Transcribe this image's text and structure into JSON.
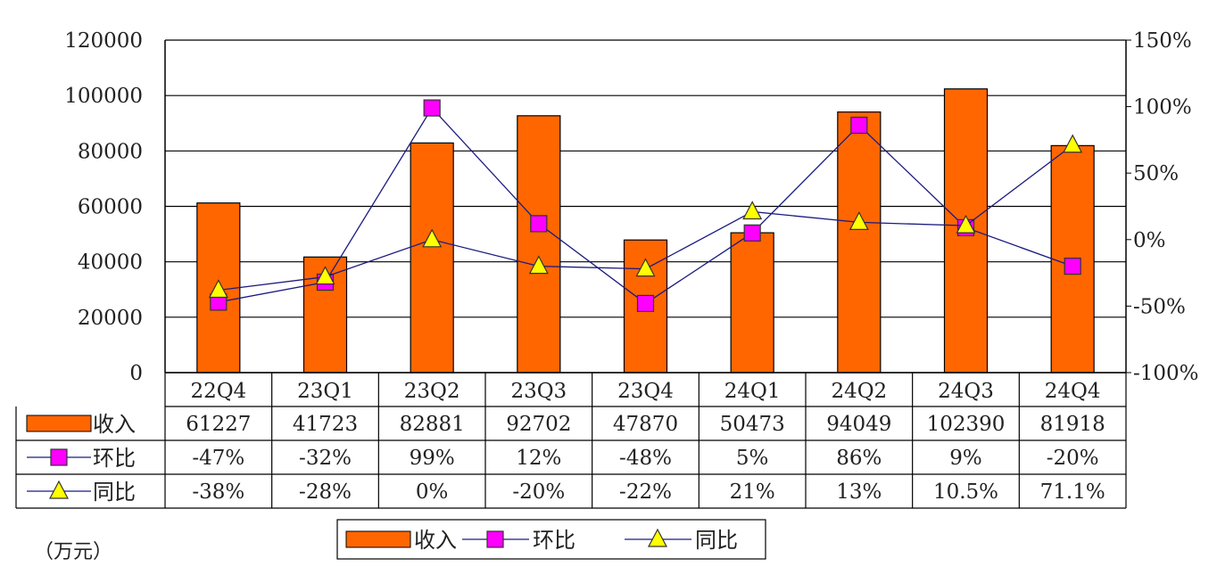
{
  "chart_data": {
    "type": "bar",
    "categories": [
      "22Q4",
      "23Q1",
      "23Q2",
      "23Q3",
      "23Q4",
      "24Q1",
      "24Q2",
      "24Q3",
      "24Q4"
    ],
    "series": [
      {
        "name": "收入",
        "type": "bar",
        "axis": "left",
        "color": "#ff6600",
        "values": [
          61227,
          41723,
          82881,
          92702,
          47870,
          50473,
          94049,
          102390,
          81918
        ]
      },
      {
        "name": "环比",
        "type": "line",
        "axis": "right",
        "marker": "square",
        "color": "#ff00ff",
        "line_color": "#1a1a80",
        "values": [
          -47,
          -32,
          99,
          12,
          -48,
          5,
          86,
          9,
          -20
        ]
      },
      {
        "name": "同比",
        "type": "line",
        "axis": "right",
        "marker": "triangle",
        "color": "#ffff00",
        "line_color": "#1a1a80",
        "values": [
          -38,
          -28,
          0,
          -20,
          -22,
          21,
          13,
          10.5,
          71.1
        ]
      }
    ],
    "table_rows": [
      {
        "label": "收入",
        "cells": [
          "61227",
          "41723",
          "82881",
          "92702",
          "47870",
          "50473",
          "94049",
          "102390",
          "81918"
        ]
      },
      {
        "label": "环比",
        "cells": [
          "-47%",
          "-32%",
          "99%",
          "12%",
          "-48%",
          "5%",
          "86%",
          "9%",
          "-20%"
        ]
      },
      {
        "label": "同比",
        "cells": [
          "-38%",
          "-28%",
          "0%",
          "-20%",
          "-22%",
          "21%",
          "13%",
          "10.5%",
          "71.1%"
        ]
      }
    ],
    "y_left": {
      "range": [
        0,
        120000
      ],
      "ticks": [
        "0",
        "20000",
        "40000",
        "60000",
        "80000",
        "100000",
        "120000"
      ]
    },
    "y_right": {
      "range": [
        -100,
        150
      ],
      "ticks": [
        "-100%",
        "-50%",
        "0%",
        "50%",
        "100%",
        "150%"
      ]
    },
    "unit_label": "（万元）",
    "legend": {
      "position": "bottom",
      "entries": [
        "收入",
        "环比",
        "同比"
      ]
    },
    "grid": true
  }
}
